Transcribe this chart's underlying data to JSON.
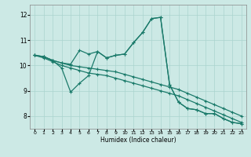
{
  "title": "",
  "xlabel": "Humidex (Indice chaleur)",
  "xlim": [
    -0.5,
    23.5
  ],
  "ylim": [
    7.5,
    12.4
  ],
  "xticks": [
    0,
    1,
    2,
    3,
    4,
    5,
    6,
    7,
    8,
    9,
    10,
    11,
    12,
    13,
    14,
    15,
    16,
    17,
    18,
    19,
    20,
    21,
    22,
    23
  ],
  "yticks": [
    8,
    9,
    10,
    11,
    12
  ],
  "bg_color": "#cce9e5",
  "line_color": "#1a7a6a",
  "grid_color": "#aad4cf",
  "line1_x": [
    0,
    1,
    2,
    3,
    4,
    5,
    6,
    7,
    8,
    9,
    10,
    11,
    12,
    13,
    14,
    15,
    16,
    17,
    18,
    19,
    20,
    21,
    22,
    23
  ],
  "line1_y": [
    10.4,
    10.35,
    10.2,
    10.1,
    10.05,
    10.6,
    10.45,
    10.55,
    10.3,
    10.4,
    10.45,
    10.9,
    11.3,
    11.85,
    11.9,
    9.25,
    8.55,
    8.3,
    8.25,
    8.1,
    8.1,
    7.9,
    7.75,
    7.7
  ],
  "line2_x": [
    0,
    1,
    2,
    3,
    4,
    5,
    6,
    7,
    8,
    9,
    10,
    11,
    12,
    13,
    14,
    15,
    16,
    17,
    18,
    19,
    20,
    21,
    22,
    23
  ],
  "line2_y": [
    10.4,
    10.35,
    10.2,
    9.9,
    8.95,
    9.3,
    9.6,
    10.55,
    10.3,
    10.4,
    10.45,
    10.9,
    11.3,
    11.85,
    11.9,
    9.25,
    8.55,
    8.3,
    8.25,
    8.1,
    8.1,
    7.9,
    7.75,
    7.7
  ],
  "line3_x": [
    0,
    1,
    2,
    3,
    4,
    5,
    6,
    7,
    8,
    9,
    10,
    11,
    12,
    13,
    14,
    15,
    16,
    17,
    18,
    19,
    20,
    21,
    22,
    23
  ],
  "line3_y": [
    10.4,
    10.35,
    10.2,
    10.1,
    10.0,
    9.95,
    9.9,
    9.85,
    9.8,
    9.75,
    9.65,
    9.55,
    9.45,
    9.35,
    9.25,
    9.15,
    9.05,
    8.9,
    8.75,
    8.6,
    8.45,
    8.3,
    8.15,
    8.0
  ],
  "line4_x": [
    0,
    1,
    2,
    3,
    4,
    5,
    6,
    7,
    8,
    9,
    10,
    11,
    12,
    13,
    14,
    15,
    16,
    17,
    18,
    19,
    20,
    21,
    22,
    23
  ],
  "line4_y": [
    10.4,
    10.3,
    10.15,
    10.0,
    9.9,
    9.8,
    9.7,
    9.65,
    9.6,
    9.5,
    9.4,
    9.3,
    9.2,
    9.1,
    9.0,
    8.9,
    8.8,
    8.65,
    8.5,
    8.35,
    8.2,
    8.05,
    7.9,
    7.75
  ]
}
